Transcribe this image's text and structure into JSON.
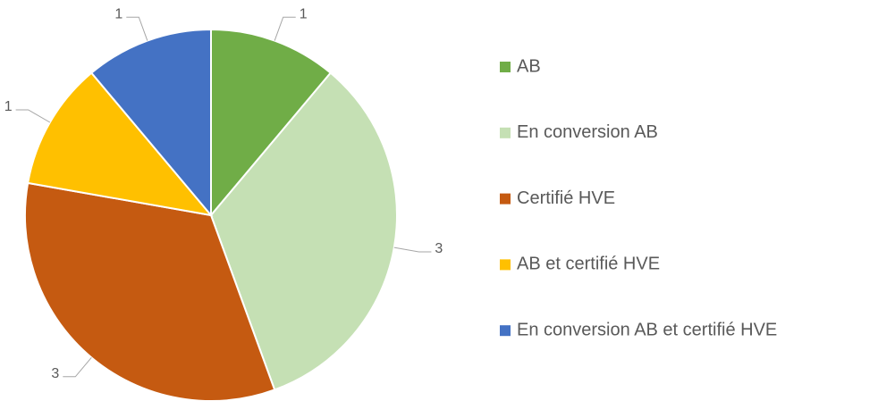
{
  "chart_data": {
    "type": "pie",
    "categories": [
      "AB",
      "En conversion AB",
      "Certifié HVE",
      "AB et certifié HVE",
      "En conversion AB et certifié HVE"
    ],
    "values": [
      1,
      3,
      3,
      1,
      1
    ],
    "colors": [
      "#70ad47",
      "#c5e0b4",
      "#c55a11",
      "#ffc000",
      "#4472c4"
    ],
    "legend": "right"
  }
}
